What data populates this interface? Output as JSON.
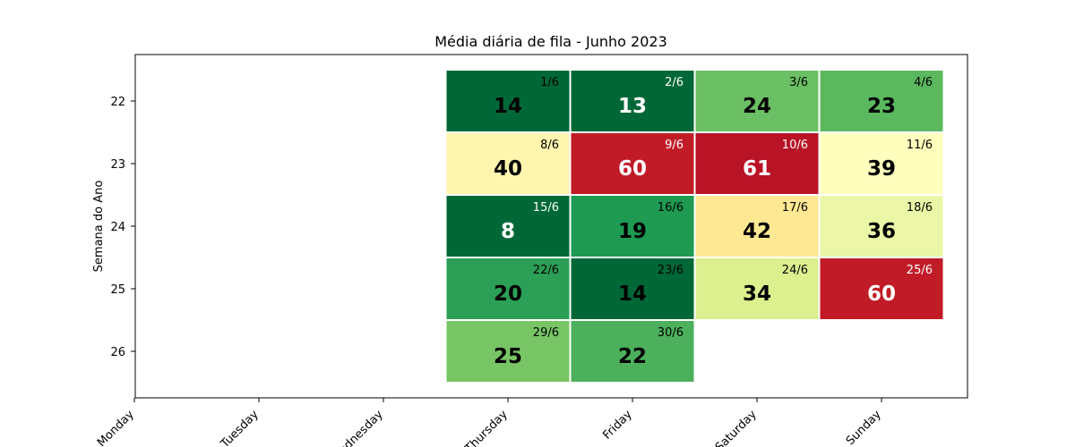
{
  "chart_data": {
    "type": "heatmap",
    "title": "Média diária de fila - Junho 2023",
    "xlabel": "",
    "ylabel": "Semana do Ano",
    "x_categories": [
      "Monday",
      "Tuesday",
      "Wednesday",
      "Thursday",
      "Friday",
      "Saturday",
      "Sunday"
    ],
    "y_categories": [
      "22",
      "23",
      "24",
      "25",
      "26"
    ],
    "colormap": "RdYlGn_r",
    "grid": false,
    "cells": [
      {
        "week": "22",
        "day": "Thursday",
        "date": "1/6",
        "value": 14,
        "color": "#006837",
        "text_color": "#000000",
        "date_color": "#000000"
      },
      {
        "week": "22",
        "day": "Friday",
        "date": "2/6",
        "value": 13,
        "color": "#006837",
        "text_color": "#ffffff",
        "date_color": "#ffffff"
      },
      {
        "week": "22",
        "day": "Saturday",
        "date": "3/6",
        "value": 24,
        "color": "#6bbf64",
        "text_color": "#000000",
        "date_color": "#000000"
      },
      {
        "week": "22",
        "day": "Sunday",
        "date": "4/6",
        "value": 23,
        "color": "#5cb85f",
        "text_color": "#000000",
        "date_color": "#000000"
      },
      {
        "week": "23",
        "day": "Thursday",
        "date": "8/6",
        "value": 40,
        "color": "#fff5ae",
        "text_color": "#000000",
        "date_color": "#000000"
      },
      {
        "week": "23",
        "day": "Friday",
        "date": "9/6",
        "value": 60,
        "color": "#c11b27",
        "text_color": "#ffffff",
        "date_color": "#ffffff"
      },
      {
        "week": "23",
        "day": "Saturday",
        "date": "10/6",
        "value": 61,
        "color": "#b91326",
        "text_color": "#ffffff",
        "date_color": "#ffffff"
      },
      {
        "week": "23",
        "day": "Sunday",
        "date": "11/6",
        "value": 39,
        "color": "#fefebd",
        "text_color": "#000000",
        "date_color": "#000000"
      },
      {
        "week": "24",
        "day": "Thursday",
        "date": "15/6",
        "value": 8,
        "color": "#006837",
        "text_color": "#ffffff",
        "date_color": "#ffffff"
      },
      {
        "week": "24",
        "day": "Friday",
        "date": "16/6",
        "value": 19,
        "color": "#1e9a52",
        "text_color": "#000000",
        "date_color": "#000000"
      },
      {
        "week": "24",
        "day": "Saturday",
        "date": "17/6",
        "value": 42,
        "color": "#fee893",
        "text_color": "#000000",
        "date_color": "#000000"
      },
      {
        "week": "24",
        "day": "Sunday",
        "date": "18/6",
        "value": 36,
        "color": "#ebf7a6",
        "text_color": "#000000",
        "date_color": "#000000"
      },
      {
        "week": "25",
        "day": "Thursday",
        "date": "22/6",
        "value": 20,
        "color": "#2a9f55",
        "text_color": "#000000",
        "date_color": "#000000"
      },
      {
        "week": "25",
        "day": "Friday",
        "date": "23/6",
        "value": 14,
        "color": "#006837",
        "text_color": "#000000",
        "date_color": "#000000"
      },
      {
        "week": "25",
        "day": "Saturday",
        "date": "24/6",
        "value": 34,
        "color": "#dcf08f",
        "text_color": "#000000",
        "date_color": "#000000"
      },
      {
        "week": "25",
        "day": "Sunday",
        "date": "25/6",
        "value": 60,
        "color": "#c11b27",
        "text_color": "#ffffff",
        "date_color": "#ffffff"
      },
      {
        "week": "26",
        "day": "Thursday",
        "date": "29/6",
        "value": 25,
        "color": "#78c566",
        "text_color": "#000000",
        "date_color": "#000000"
      },
      {
        "week": "26",
        "day": "Friday",
        "date": "30/6",
        "value": 22,
        "color": "#4cb05c",
        "text_color": "#000000",
        "date_color": "#000000"
      }
    ]
  }
}
